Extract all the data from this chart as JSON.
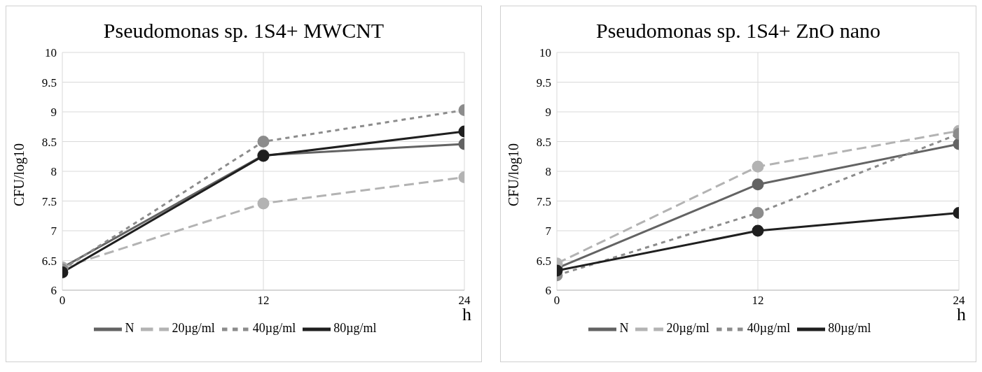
{
  "chart_data": [
    {
      "type": "line",
      "title": "Pseudomonas sp. 1S4+ MWCNT",
      "ylabel": "CFU/log10",
      "xlabel": "h",
      "x": [
        0,
        12,
        24
      ],
      "xlim": [
        0,
        24
      ],
      "xticks": [
        0,
        12,
        24
      ],
      "ylim": [
        6,
        10
      ],
      "yticks": [
        6,
        6.5,
        7,
        7.5,
        8,
        8.5,
        9,
        9.5,
        10
      ],
      "grid": true,
      "legend": "bottom",
      "marker": "circle",
      "series": [
        {
          "name": "N",
          "color": "#636363",
          "line_style": "solid",
          "values": [
            6.38,
            8.27,
            8.46
          ]
        },
        {
          "name": "20µg/ml",
          "color": "#b3b3b3",
          "line_style": "dashed",
          "values": [
            6.38,
            7.46,
            7.9
          ]
        },
        {
          "name": "40µg/ml",
          "color": "#8c8c8c",
          "line_style": "dotted",
          "values": [
            6.35,
            8.5,
            9.03
          ]
        },
        {
          "name": "80µg/ml",
          "color": "#1f1f1f",
          "line_style": "solid",
          "values": [
            6.3,
            8.26,
            8.67
          ]
        }
      ]
    },
    {
      "type": "line",
      "title": "Pseudomonas sp. 1S4+ ZnO nano",
      "ylabel": "CFU/log10",
      "xlabel": "h",
      "x": [
        0,
        12,
        24
      ],
      "xlim": [
        0,
        24
      ],
      "xticks": [
        0,
        12,
        24
      ],
      "ylim": [
        6,
        10
      ],
      "yticks": [
        6,
        6.5,
        7,
        7.5,
        8,
        8.5,
        9,
        9.5,
        10
      ],
      "grid": true,
      "legend": "bottom",
      "marker": "circle",
      "series": [
        {
          "name": "N",
          "color": "#636363",
          "line_style": "solid",
          "values": [
            6.37,
            7.78,
            8.46
          ]
        },
        {
          "name": "20µg/ml",
          "color": "#b3b3b3",
          "line_style": "dashed",
          "values": [
            6.45,
            8.08,
            8.68
          ]
        },
        {
          "name": "40µg/ml",
          "color": "#8c8c8c",
          "line_style": "dotted",
          "values": [
            6.25,
            7.3,
            8.63
          ]
        },
        {
          "name": "80µg/ml",
          "color": "#1f1f1f",
          "line_style": "solid",
          "values": [
            6.33,
            7.0,
            7.3
          ]
        }
      ]
    }
  ]
}
